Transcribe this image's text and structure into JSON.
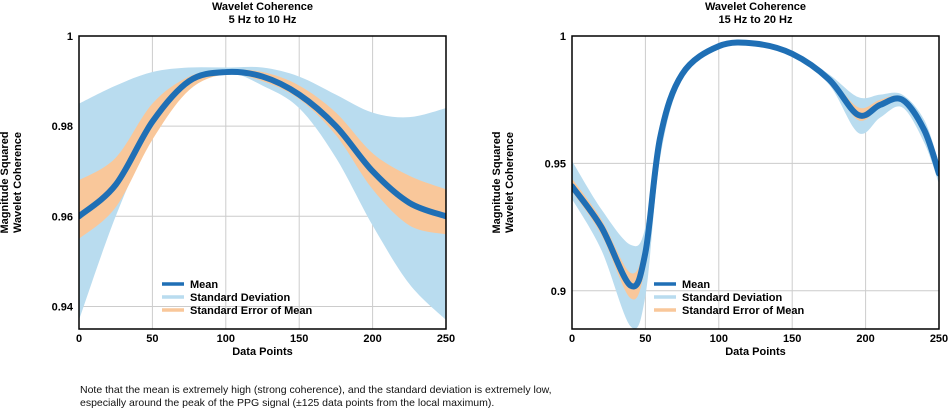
{
  "colors": {
    "mean": "#1f6fb5",
    "std_dev": "#b9dcef",
    "sem": "#f9c79a",
    "grid": "#cccccc",
    "axis": "#000000"
  },
  "chart_data": [
    {
      "type": "line",
      "title": "Wavelet Coherence",
      "subtitle": "5 Hz to 10 Hz",
      "xlabel": "Data Points",
      "ylabel": [
        "Magnitude Squared",
        "Wavelet Coherence"
      ],
      "xlim": [
        0,
        250
      ],
      "ylim": [
        0.935,
        1
      ],
      "xticks": [
        0,
        50,
        100,
        150,
        200,
        250
      ],
      "yticks": [
        0.94,
        0.96,
        0.98,
        1
      ],
      "ytick_labels": [
        "0.94",
        "0.96",
        "0.98",
        "1"
      ],
      "grid": true,
      "legend_position": "bottom-center",
      "legend": [
        "Mean",
        "Standard Deviation",
        "Standard Error of Mean"
      ],
      "x": [
        0,
        25,
        50,
        75,
        100,
        125,
        150,
        175,
        200,
        225,
        250
      ],
      "series": [
        {
          "name": "Mean",
          "values": [
            0.96,
            0.967,
            0.981,
            0.99,
            0.992,
            0.991,
            0.987,
            0.98,
            0.97,
            0.963,
            0.96
          ]
        },
        {
          "name": "Standard Deviation",
          "lower": [
            0.937,
            0.96,
            0.978,
            0.989,
            0.992,
            0.989,
            0.984,
            0.973,
            0.958,
            0.945,
            0.937
          ],
          "upper": [
            0.985,
            0.989,
            0.992,
            0.993,
            0.993,
            0.993,
            0.991,
            0.987,
            0.983,
            0.982,
            0.984
          ]
        },
        {
          "name": "Standard Error of Mean",
          "lower": [
            0.955,
            0.962,
            0.977,
            0.988,
            0.9915,
            0.99,
            0.986,
            0.978,
            0.966,
            0.958,
            0.956
          ],
          "upper": [
            0.968,
            0.973,
            0.985,
            0.991,
            0.9925,
            0.992,
            0.989,
            0.983,
            0.974,
            0.969,
            0.966
          ]
        }
      ]
    },
    {
      "type": "line",
      "title": "Wavelet Coherence",
      "subtitle": "15 Hz to 20 Hz",
      "xlabel": "Data Points",
      "ylabel": [
        "Magnitude Squared",
        "Wavelet Coherence"
      ],
      "xlim": [
        0,
        250
      ],
      "ylim": [
        0.885,
        1
      ],
      "xticks": [
        0,
        50,
        100,
        150,
        200,
        250
      ],
      "yticks": [
        0.9,
        0.95,
        1
      ],
      "ytick_labels": [
        "0.9",
        "0.95",
        "1"
      ],
      "grid": true,
      "legend_position": "bottom-center",
      "legend": [
        "Mean",
        "Standard Deviation",
        "Standard Error of Mean"
      ],
      "x": [
        0,
        20,
        40,
        50,
        60,
        75,
        100,
        125,
        150,
        175,
        195,
        210,
        225,
        240,
        250
      ],
      "series": [
        {
          "name": "Mean",
          "values": [
            0.941,
            0.925,
            0.902,
            0.915,
            0.96,
            0.985,
            0.996,
            0.997,
            0.993,
            0.983,
            0.969,
            0.973,
            0.975,
            0.963,
            0.946
          ]
        },
        {
          "name": "Standard Deviation",
          "lower": [
            0.936,
            0.916,
            0.886,
            0.898,
            0.952,
            0.983,
            0.995,
            0.996,
            0.992,
            0.981,
            0.962,
            0.968,
            0.972,
            0.958,
            0.942
          ],
          "upper": [
            0.951,
            0.932,
            0.918,
            0.925,
            0.965,
            0.987,
            0.997,
            0.998,
            0.994,
            0.985,
            0.976,
            0.977,
            0.977,
            0.967,
            0.95
          ]
        },
        {
          "name": "Standard Error of Mean",
          "lower": [
            0.939,
            0.922,
            0.897,
            0.91,
            0.958,
            0.984,
            0.996,
            0.997,
            0.993,
            0.982,
            0.967,
            0.972,
            0.974,
            0.962,
            0.945
          ],
          "upper": [
            0.944,
            0.928,
            0.907,
            0.92,
            0.962,
            0.986,
            0.996,
            0.997,
            0.993,
            0.984,
            0.972,
            0.975,
            0.976,
            0.965,
            0.948
          ]
        }
      ]
    }
  ],
  "note": {
    "line1": "Note that the mean is extremely high (strong coherence), and the standard deviation is extremely low,",
    "line2": "especially around the peak of the PPG signal (±125 data points from the local maximum)."
  }
}
